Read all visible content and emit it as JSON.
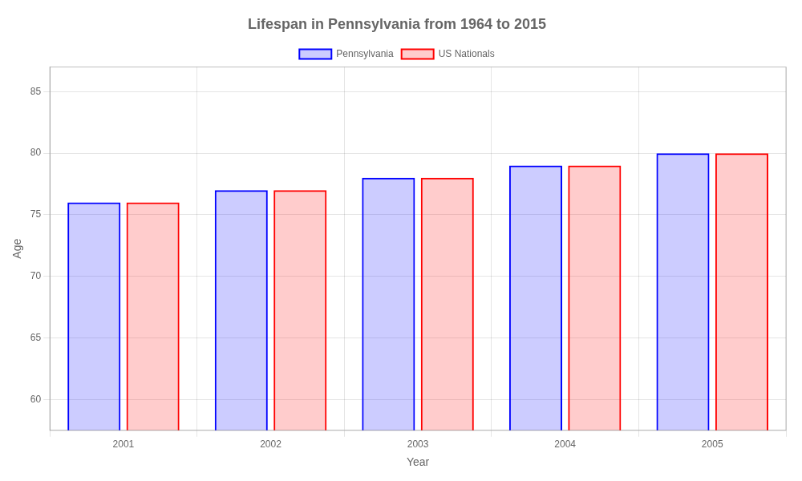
{
  "chart_data": {
    "type": "bar",
    "title": "Lifespan in Pennsylvania from 1964 to 2015",
    "x_label": "Year",
    "y_label": "Age",
    "categories": [
      "2001",
      "2002",
      "2003",
      "2004",
      "2005"
    ],
    "series": [
      {
        "name": "Pennsylvania",
        "color": "#0000ff",
        "values": [
          76,
          77,
          78,
          79,
          80
        ]
      },
      {
        "name": "US Nationals",
        "color": "#ff0000",
        "values": [
          76,
          77,
          78,
          79,
          80
        ]
      }
    ],
    "ylim": [
      57.5,
      87
    ],
    "yticks": [
      60,
      65,
      70,
      75,
      80,
      85
    ],
    "grid": true,
    "legend": "top"
  }
}
